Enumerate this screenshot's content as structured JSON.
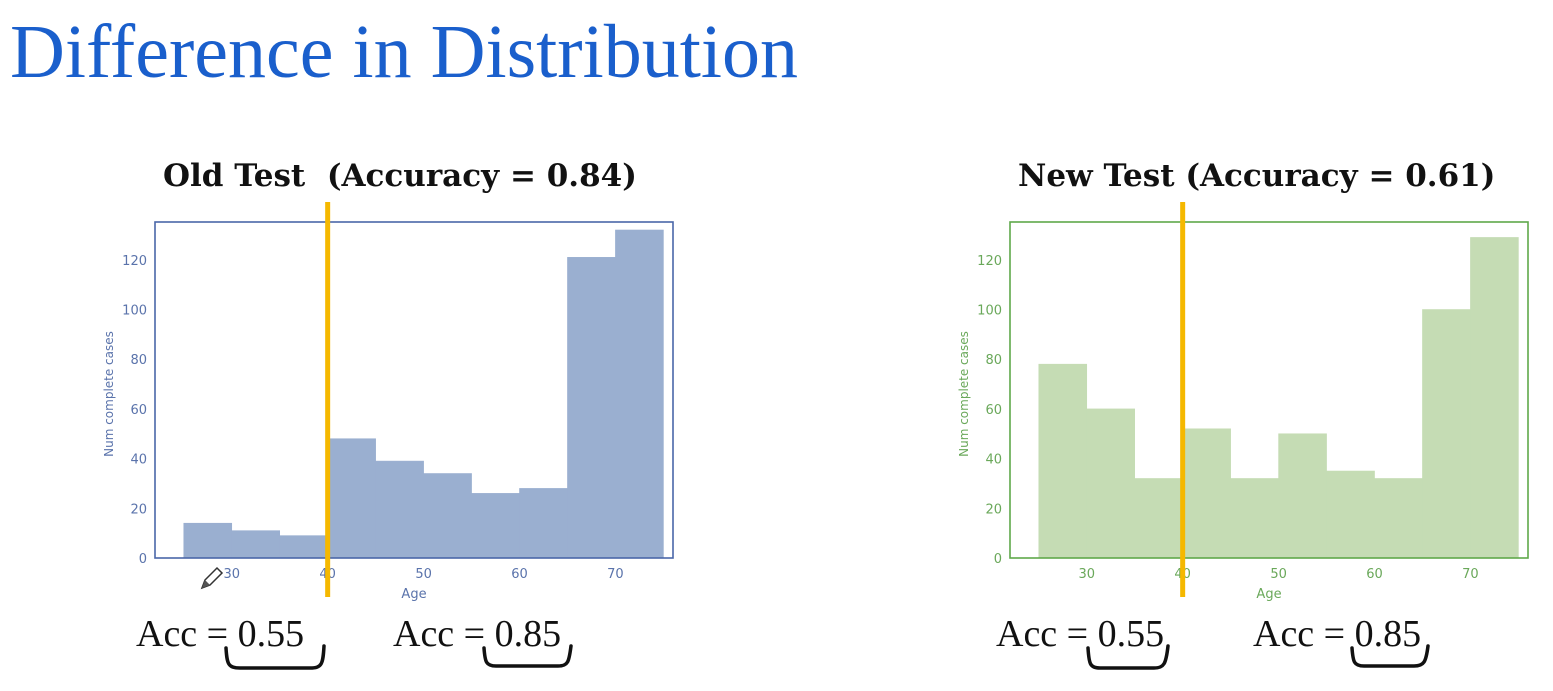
{
  "slide": {
    "title": "Difference in Distribution"
  },
  "colors": {
    "title": "#1a5fcc",
    "threshold_line": "#f5b800",
    "old_frame": "#4a67a8",
    "old_bar": "#9aafd0",
    "old_text": "#5a73ab",
    "new_frame": "#5fa84a",
    "new_bar": "#c5dcb4",
    "new_text": "#6aa85a"
  },
  "chart_data": [
    {
      "type": "bar",
      "title": "Old Test  (Accuracy = 0.84)",
      "xlabel": "Age",
      "ylabel": "Num complete cases",
      "bin_edges": [
        25,
        30,
        35,
        40,
        45,
        50,
        55,
        60,
        65,
        70,
        75
      ],
      "values": [
        14,
        11,
        9,
        48,
        39,
        34,
        26,
        28,
        121,
        132
      ],
      "xlim": [
        22,
        76
      ],
      "ylim": [
        0,
        132
      ],
      "x_ticks": [
        30,
        40,
        50,
        60,
        70
      ],
      "y_ticks": [
        0,
        20,
        40,
        60,
        80,
        100,
        120
      ],
      "threshold_x": 40,
      "grid": false,
      "annotations": [
        "Acc = 0.55",
        "Acc = 0.85"
      ]
    },
    {
      "type": "bar",
      "title": "New Test (Accuracy = 0.61)",
      "xlabel": "Age",
      "ylabel": "Num complete cases",
      "bin_edges": [
        25,
        30,
        35,
        40,
        45,
        50,
        55,
        60,
        65,
        70,
        75
      ],
      "values": [
        78,
        60,
        32,
        52,
        32,
        50,
        35,
        32,
        100,
        129
      ],
      "xlim": [
        22,
        76
      ],
      "ylim": [
        0,
        132
      ],
      "x_ticks": [
        30,
        40,
        50,
        60,
        70
      ],
      "y_ticks": [
        0,
        20,
        40,
        60,
        80,
        100,
        120
      ],
      "threshold_x": 40,
      "grid": false,
      "annotations": [
        "Acc = 0.55",
        "Acc = 0.85"
      ]
    }
  ]
}
